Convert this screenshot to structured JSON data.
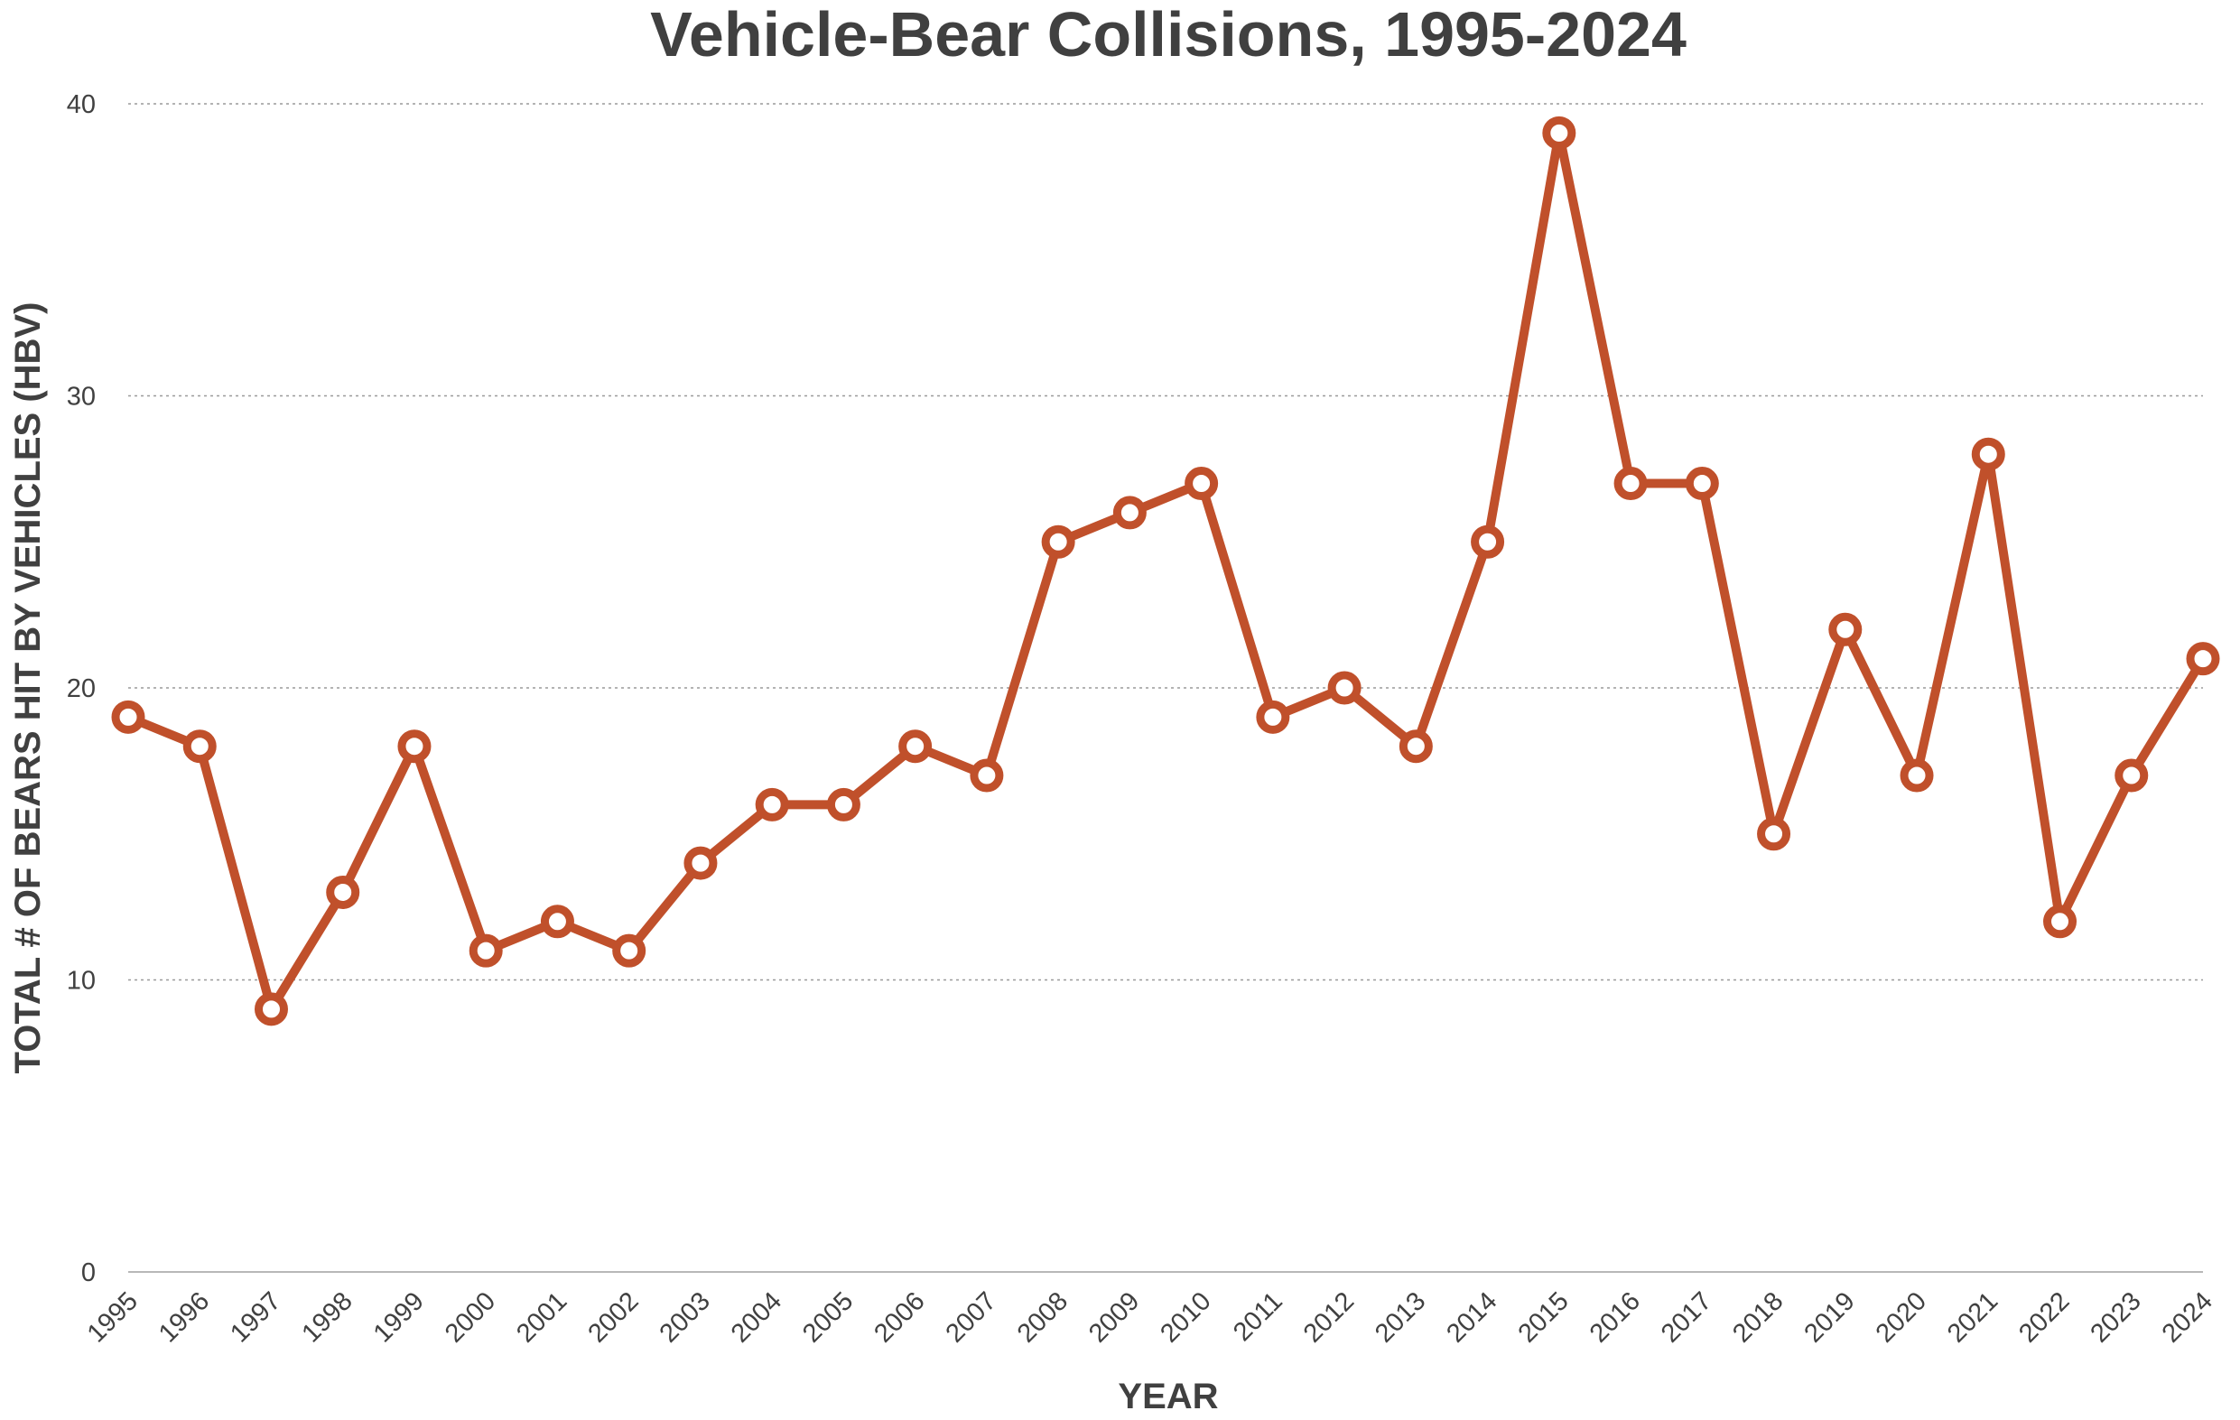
{
  "chart_data": {
    "type": "line",
    "title": "Vehicle-Bear Collisions, 1995-2024",
    "xlabel": "YEAR",
    "ylabel": "TOTAL # OF BEARS HIT BY VEHICLES  (HBV)",
    "ylim": [
      0,
      40
    ],
    "yticks": [
      0,
      10,
      20,
      30,
      40
    ],
    "grid": true,
    "line_color": "#c0502b",
    "marker_fill": "#ffffff",
    "categories": [
      "1995",
      "1996",
      "1997",
      "1998",
      "1999",
      "2000",
      "2001",
      "2002",
      "2003",
      "2004",
      "2005",
      "2006",
      "2007",
      "2008",
      "2009",
      "2010",
      "2011",
      "2012",
      "2013",
      "2014",
      "2015",
      "2016",
      "2017",
      "2018",
      "2019",
      "2020",
      "2021",
      "2022",
      "2023",
      "2024"
    ],
    "series": [
      {
        "name": "HBV",
        "values": [
          19,
          18,
          9,
          13,
          18,
          11,
          12,
          11,
          14,
          16,
          16,
          18,
          17,
          25,
          26,
          27,
          19,
          20,
          18,
          25,
          39,
          27,
          27,
          15,
          22,
          17,
          28,
          12,
          17,
          21
        ]
      }
    ]
  }
}
